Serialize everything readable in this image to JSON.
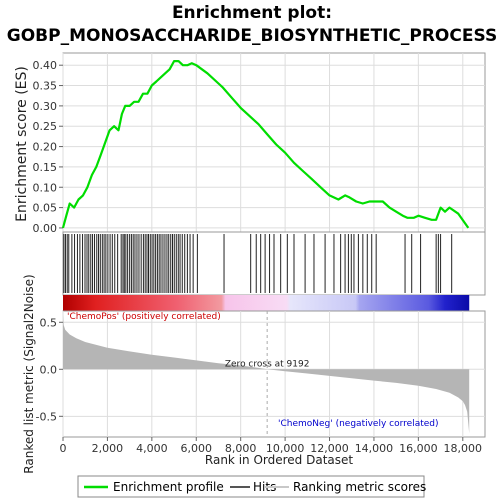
{
  "chart_data": {
    "type": "line",
    "title_lines": [
      "Enrichment plot:",
      "GOBP_MONOSACCHARIDE_BIOSYNTHETIC_PROCESS"
    ],
    "es_panel": {
      "ylabel": "Enrichment score (ES)",
      "ylim": [
        -0.01,
        0.43
      ],
      "yticks": [
        "0.00",
        "0.05",
        "0.10",
        "0.15",
        "0.20",
        "0.25",
        "0.30",
        "0.35",
        "0.40"
      ],
      "line_color": "#00dd00",
      "series": [
        {
          "name": "Enrichment profile",
          "x": [
            0,
            150,
            300,
            500,
            700,
            900,
            1100,
            1300,
            1500,
            1700,
            1900,
            2100,
            2300,
            2500,
            2650,
            2800,
            3000,
            3200,
            3400,
            3600,
            3800,
            4000,
            4200,
            4400,
            4600,
            4800,
            5000,
            5200,
            5400,
            5600,
            5800,
            6000,
            6500,
            7000,
            7200,
            7600,
            8000,
            8400,
            8800,
            9200,
            9600,
            10000,
            10400,
            10800,
            11200,
            11600,
            12000,
            12400,
            12700,
            12900,
            13200,
            13500,
            13800,
            14100,
            14400,
            14700,
            15000,
            15300,
            15500,
            15800,
            16000,
            16300,
            16600,
            16800,
            17000,
            17200,
            17400,
            17800,
            18250
          ],
          "y": [
            0.0,
            0.03,
            0.06,
            0.05,
            0.07,
            0.08,
            0.1,
            0.13,
            0.15,
            0.18,
            0.21,
            0.24,
            0.25,
            0.24,
            0.28,
            0.3,
            0.3,
            0.31,
            0.31,
            0.33,
            0.33,
            0.35,
            0.36,
            0.37,
            0.38,
            0.39,
            0.41,
            0.41,
            0.4,
            0.4,
            0.405,
            0.4,
            0.38,
            0.355,
            0.345,
            0.32,
            0.295,
            0.275,
            0.255,
            0.23,
            0.205,
            0.185,
            0.16,
            0.14,
            0.12,
            0.1,
            0.08,
            0.07,
            0.08,
            0.075,
            0.065,
            0.06,
            0.065,
            0.065,
            0.065,
            0.05,
            0.04,
            0.03,
            0.025,
            0.025,
            0.03,
            0.025,
            0.02,
            0.02,
            0.05,
            0.04,
            0.05,
            0.035,
            0.0
          ]
        }
      ]
    },
    "hits_x": [
      40,
      110,
      190,
      260,
      400,
      520,
      650,
      760,
      880,
      990,
      1080,
      1160,
      1250,
      1330,
      1420,
      1520,
      1600,
      1680,
      1770,
      1850,
      1930,
      2020,
      2120,
      2220,
      2330,
      2460,
      2620,
      2700,
      2760,
      2830,
      2910,
      3000,
      3080,
      3160,
      3240,
      3330,
      3420,
      3520,
      3620,
      3700,
      3780,
      3850,
      3930,
      4010,
      4090,
      4170,
      4250,
      4330,
      4410,
      4500,
      4590,
      4680,
      4760,
      4850,
      4930,
      5010,
      5100,
      5190,
      5270,
      5370,
      5480,
      5600,
      5720,
      5860,
      6050,
      7250,
      8450,
      8700,
      8900,
      9100,
      9300,
      9500,
      9800,
      10100,
      10400,
      10900,
      11300,
      11800,
      12200,
      12500,
      12700,
      12850,
      12980,
      13100,
      13300,
      13500,
      13700,
      13900,
      14100,
      15400,
      15700,
      16100,
      16800,
      16900,
      17000,
      17500
    ],
    "ranked_panel": {
      "ylabel": "Ranked list metric (Signal2Noise)",
      "ylim": [
        -0.72,
        0.62
      ],
      "yticks": [
        "0.5",
        "0.0",
        "-0.5"
      ],
      "zero_cross_label": "Zero cross at 9192",
      "zero_cross_x": 9192,
      "pos_label": "'ChemoPos' (positively correlated)",
      "neg_label": "'ChemoNeg' (negatively correlated)",
      "profile_x": [
        0,
        30,
        100,
        300,
        600,
        1000,
        1500,
        2000,
        3000,
        4000,
        5000,
        6000,
        7000,
        8000,
        8800,
        9192,
        10000,
        11000,
        12000,
        13000,
        14000,
        15000,
        16000,
        16800,
        17400,
        17800,
        18000,
        18100,
        18200,
        18290
      ],
      "profile_y": [
        0.58,
        0.47,
        0.42,
        0.37,
        0.33,
        0.29,
        0.26,
        0.23,
        0.19,
        0.155,
        0.125,
        0.095,
        0.065,
        0.04,
        0.015,
        0.0,
        -0.02,
        -0.045,
        -0.07,
        -0.095,
        -0.12,
        -0.145,
        -0.175,
        -0.21,
        -0.25,
        -0.3,
        -0.34,
        -0.38,
        -0.45,
        -0.68
      ]
    },
    "xaxis": {
      "xlabel": "Rank in Dataset",
      "xlabel_full": "Rank in Ordered Dataset",
      "xlim": [
        0,
        19000
      ],
      "xticks": [
        0,
        2000,
        4000,
        6000,
        8000,
        10000,
        12000,
        14000,
        16000,
        18000
      ],
      "xtick_labels": [
        "0",
        "2,000",
        "4,000",
        "6,000",
        "8,000",
        "10,000",
        "12,000",
        "14,000",
        "16,000",
        "18,000"
      ],
      "n_genes": 18290
    },
    "legend": {
      "placement": "bottom",
      "items": [
        {
          "label": "Enrichment profile",
          "color": "#00dd00"
        },
        {
          "label": "Hits",
          "color": "#555555"
        },
        {
          "label": "Ranking metric scores",
          "color": "#c8c8c8"
        }
      ]
    },
    "colors": {
      "pos_label": "#cc0000",
      "neg_label": "#0000cc",
      "zero_line": "#aaaaaa",
      "metric_fill": "#b5b5b5"
    }
  }
}
